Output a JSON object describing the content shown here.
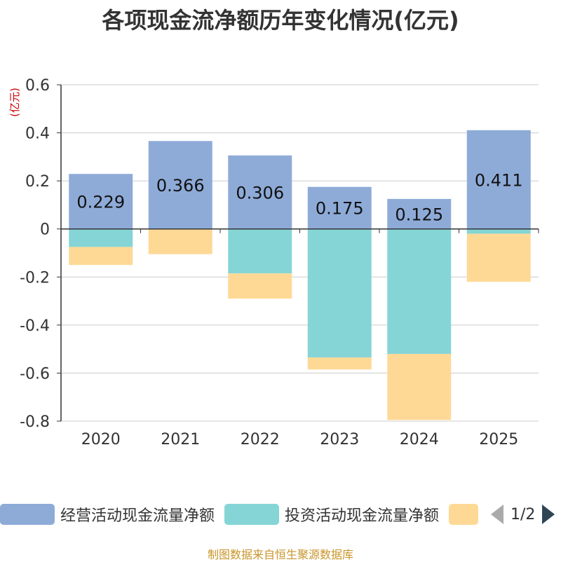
{
  "title": "各项现金流净额历年变化情况(亿元)",
  "source_text": "制图数据来自恒生聚源数据库",
  "legend": {
    "items": [
      {
        "label": "经营活动现金流量净额",
        "color": "#8eabd8"
      },
      {
        "label": "投资活动现金流量净额",
        "color": "#85d5d6"
      },
      {
        "label": "",
        "color": "#fed996"
      }
    ],
    "page_text": "1/2"
  },
  "chart_data": {
    "type": "bar",
    "stacked": true,
    "title": "各项现金流净额历年变化情况(亿元)",
    "ylabel": "(亿元)",
    "xlabel": "",
    "ylim": [
      -0.8,
      0.6
    ],
    "yticks": [
      0.6,
      0.4,
      0.2,
      0,
      -0.2,
      -0.4,
      -0.6,
      -0.8
    ],
    "ytick_labels": [
      "0.6",
      "0.4",
      "0.2",
      "0",
      "-0.2",
      "-0.4",
      "-0.6",
      "-0.8"
    ],
    "categories": [
      "2020",
      "2021",
      "2022",
      "2023",
      "2024",
      "2025"
    ],
    "grid": true,
    "series": [
      {
        "name": "经营活动现金流量净额",
        "color": "#8eabd8",
        "values": [
          0.229,
          0.366,
          0.306,
          0.175,
          0.125,
          0.411
        ],
        "labels": [
          "0.229",
          "0.366",
          "0.306",
          "0.175",
          "0.125",
          "0.411"
        ]
      },
      {
        "name": "投资活动现金流量净额",
        "color": "#85d5d6",
        "values": [
          -0.075,
          0.0,
          -0.185,
          -0.535,
          -0.52,
          -0.02
        ]
      },
      {
        "name": "",
        "color": "#fed996",
        "values": [
          -0.075,
          -0.105,
          -0.105,
          -0.05,
          -0.275,
          -0.2
        ]
      }
    ]
  }
}
